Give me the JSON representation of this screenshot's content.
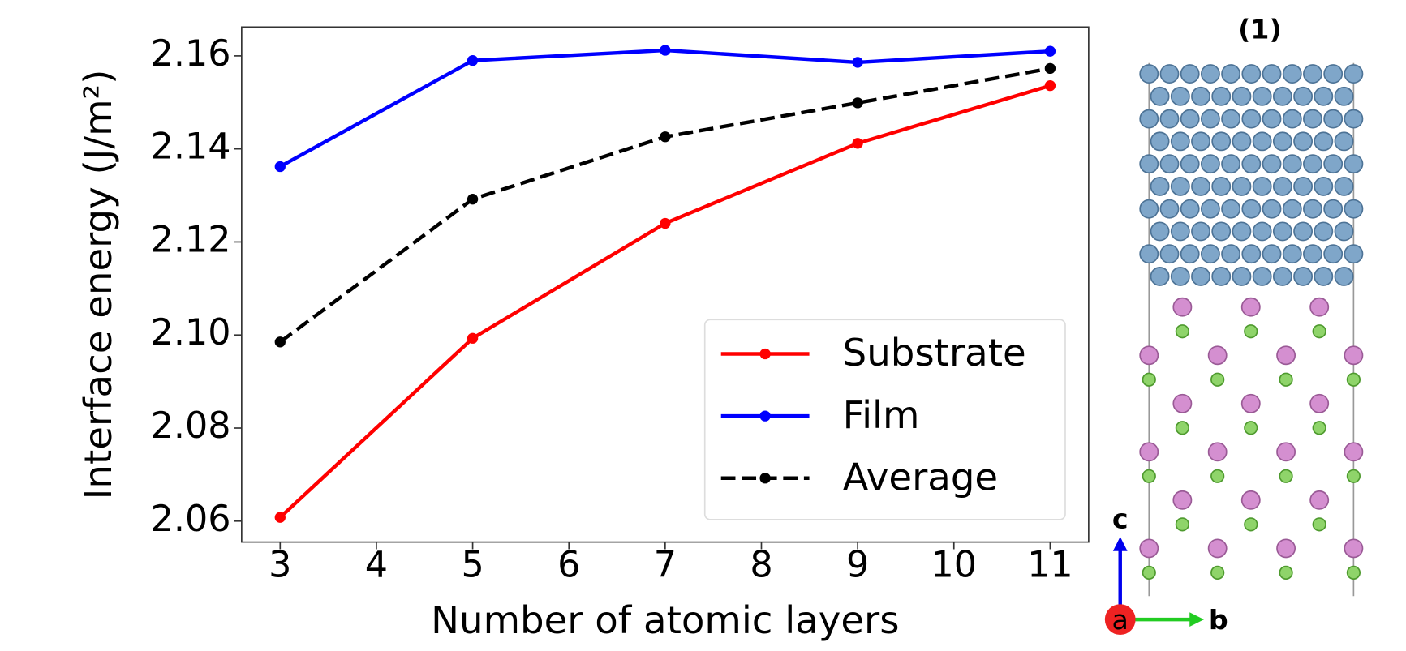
{
  "chart_data": {
    "type": "line",
    "xlabel": "Number of atomic layers",
    "ylabel": "Interface energy (J/m²)",
    "x": [
      3,
      5,
      7,
      9,
      11
    ],
    "series": [
      {
        "name": "Substrate",
        "color": "#ff0000",
        "style": "solid",
        "values": [
          2.0608,
          2.0993,
          2.124,
          2.1412,
          2.1536
        ]
      },
      {
        "name": "Film",
        "color": "#0000ff",
        "style": "solid",
        "values": [
          2.1362,
          2.159,
          2.1612,
          2.1586,
          2.161
        ]
      },
      {
        "name": "Average",
        "color": "#000000",
        "style": "dashed",
        "values": [
          2.0985,
          2.1292,
          2.1426,
          2.1499,
          2.1573
        ]
      }
    ],
    "xlim": [
      2.6,
      11.4
    ],
    "ylim": [
      2.0555,
      2.1662
    ],
    "xticks": [
      3,
      4,
      5,
      6,
      7,
      8,
      9,
      10,
      11
    ],
    "yticks": [
      2.06,
      2.08,
      {
        "value": 2.1,
        "label": "2.10"
      },
      2.12,
      2.14,
      2.16
    ],
    "legend": "lower right",
    "grid": false
  },
  "structure_panel": {
    "title": "(1)",
    "axis_c": "c",
    "axis_a": "a",
    "axis_b": "b"
  }
}
